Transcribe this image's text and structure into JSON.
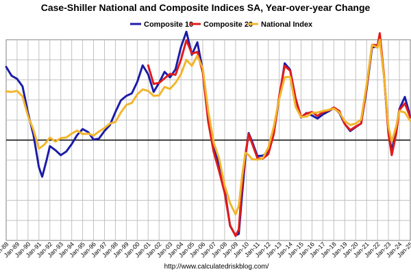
{
  "chart_data": {
    "type": "line",
    "title": "Case-Shiller National and Composite Indices SA, Year-over-year Change",
    "source": "http://www.calculatedriskblog.com/",
    "xlabel": "",
    "ylabel": "",
    "grid": true,
    "legend_position": "top-center",
    "xlim": [
      1988,
      2025
    ],
    "ylim": [
      -20,
      20
    ],
    "x_ticks": [
      "Jan-88",
      "Jan-89",
      "Jan-90",
      "Jan-91",
      "Jan-92",
      "Jan-93",
      "Jan-94",
      "Jan-95",
      "Jan-96",
      "Jan-97",
      "Jan-98",
      "Jan-99",
      "Jan-00",
      "Jan-01",
      "Jan-02",
      "Jan-03",
      "Jan-04",
      "Jan-05",
      "Jan-06",
      "Jan-07",
      "Jan-08",
      "Jan-09",
      "Jan-10",
      "Jan-11",
      "Jan-12",
      "Jan-13",
      "Jan-14",
      "Jan-15",
      "Jan-16",
      "Jan-17",
      "Jan-18",
      "Jan-19",
      "Jan-20",
      "Jan-21",
      "Jan-22",
      "Jan-23",
      "Jan-24",
      "Jan-25"
    ],
    "series": [
      {
        "name": "Composite 10",
        "color": "#1c1ca6",
        "points": [
          [
            1988.0,
            14.6
          ],
          [
            1988.5,
            12.8
          ],
          [
            1989.0,
            12.2
          ],
          [
            1989.5,
            10.7
          ],
          [
            1990.0,
            5.4
          ],
          [
            1990.5,
            1.0
          ],
          [
            1991.0,
            -5.4
          ],
          [
            1991.3,
            -7.3
          ],
          [
            1991.7,
            -4.0
          ],
          [
            1992.0,
            -1.2
          ],
          [
            1992.5,
            -2.0
          ],
          [
            1993.0,
            -3.0
          ],
          [
            1993.5,
            -2.3
          ],
          [
            1994.0,
            -0.8
          ],
          [
            1994.5,
            1.0
          ],
          [
            1995.0,
            2.2
          ],
          [
            1995.5,
            1.6
          ],
          [
            1996.0,
            0.1
          ],
          [
            1996.5,
            0.3
          ],
          [
            1997.0,
            1.8
          ],
          [
            1997.5,
            3.0
          ],
          [
            1998.0,
            5.6
          ],
          [
            1998.5,
            7.9
          ],
          [
            1999.0,
            8.8
          ],
          [
            1999.5,
            9.3
          ],
          [
            2000.0,
            11.6
          ],
          [
            2000.5,
            14.9
          ],
          [
            2001.0,
            13.1
          ],
          [
            2001.5,
            9.6
          ],
          [
            2002.0,
            11.4
          ],
          [
            2002.5,
            13.6
          ],
          [
            2003.0,
            12.5
          ],
          [
            2003.5,
            14.1
          ],
          [
            2004.0,
            18.5
          ],
          [
            2004.5,
            21.6
          ],
          [
            2004.8,
            18.9
          ],
          [
            2005.0,
            17.0
          ],
          [
            2005.5,
            19.5
          ],
          [
            2006.0,
            13.9
          ],
          [
            2006.5,
            3.9
          ],
          [
            2007.0,
            -1.4
          ],
          [
            2007.5,
            -5.0
          ],
          [
            2008.0,
            -9.8
          ],
          [
            2008.5,
            -17.1
          ],
          [
            2009.0,
            -19.0
          ],
          [
            2009.3,
            -18.7
          ],
          [
            2009.6,
            -10.9
          ],
          [
            2009.9,
            -3.4
          ],
          [
            2010.2,
            1.4
          ],
          [
            2010.5,
            -0.2
          ],
          [
            2011.0,
            -3.2
          ],
          [
            2011.5,
            -3.1
          ],
          [
            2012.0,
            -2.4
          ],
          [
            2012.5,
            1.4
          ],
          [
            2013.0,
            8.3
          ],
          [
            2013.5,
            15.3
          ],
          [
            2014.0,
            14.0
          ],
          [
            2014.5,
            8.2
          ],
          [
            2015.0,
            4.5
          ],
          [
            2015.5,
            5.4
          ],
          [
            2016.0,
            4.9
          ],
          [
            2016.5,
            4.3
          ],
          [
            2017.0,
            5.1
          ],
          [
            2017.5,
            5.7
          ],
          [
            2018.0,
            6.4
          ],
          [
            2018.5,
            5.4
          ],
          [
            2019.0,
            3.2
          ],
          [
            2019.5,
            1.8
          ],
          [
            2020.0,
            2.6
          ],
          [
            2020.5,
            3.3
          ],
          [
            2021.0,
            10.1
          ],
          [
            2021.5,
            18.5
          ],
          [
            2022.0,
            18.6
          ],
          [
            2022.2,
            20.0
          ],
          [
            2022.6,
            12.6
          ],
          [
            2023.0,
            1.6
          ],
          [
            2023.3,
            -2.2
          ],
          [
            2023.7,
            2.2
          ],
          [
            2024.0,
            6.2
          ],
          [
            2024.5,
            8.6
          ],
          [
            2025.0,
            4.7
          ]
        ]
      },
      {
        "name": "Composite 20",
        "color": "#e01b1b",
        "points": [
          [
            2001.0,
            14.9
          ],
          [
            2001.5,
            11.2
          ],
          [
            2002.0,
            11.4
          ],
          [
            2002.5,
            12.3
          ],
          [
            2003.0,
            13.2
          ],
          [
            2003.5,
            13.0
          ],
          [
            2004.0,
            16.0
          ],
          [
            2004.5,
            19.9
          ],
          [
            2005.0,
            17.2
          ],
          [
            2005.5,
            17.6
          ],
          [
            2006.0,
            13.5
          ],
          [
            2006.5,
            3.6
          ],
          [
            2007.0,
            -2.4
          ],
          [
            2007.5,
            -6.2
          ],
          [
            2008.0,
            -10.5
          ],
          [
            2008.5,
            -17.0
          ],
          [
            2009.0,
            -19.1
          ],
          [
            2009.3,
            -17.8
          ],
          [
            2009.6,
            -8.8
          ],
          [
            2009.9,
            -2.8
          ],
          [
            2010.2,
            1.2
          ],
          [
            2010.5,
            -0.6
          ],
          [
            2011.0,
            -3.6
          ],
          [
            2011.5,
            -3.7
          ],
          [
            2012.0,
            -2.8
          ],
          [
            2012.5,
            1.2
          ],
          [
            2013.0,
            8.8
          ],
          [
            2013.5,
            14.8
          ],
          [
            2014.0,
            13.8
          ],
          [
            2014.5,
            8.3
          ],
          [
            2015.0,
            4.6
          ],
          [
            2015.5,
            5.3
          ],
          [
            2016.0,
            5.6
          ],
          [
            2016.5,
            4.8
          ],
          [
            2017.0,
            5.6
          ],
          [
            2017.5,
            5.9
          ],
          [
            2018.0,
            6.5
          ],
          [
            2018.5,
            5.8
          ],
          [
            2019.0,
            3.2
          ],
          [
            2019.5,
            2.0
          ],
          [
            2020.0,
            2.7
          ],
          [
            2020.5,
            3.3
          ],
          [
            2021.0,
            10.5
          ],
          [
            2021.5,
            19.0
          ],
          [
            2022.0,
            18.9
          ],
          [
            2022.2,
            21.3
          ],
          [
            2022.6,
            12.9
          ],
          [
            2023.0,
            1.2
          ],
          [
            2023.3,
            -3.0
          ],
          [
            2023.7,
            1.2
          ],
          [
            2024.0,
            6.0
          ],
          [
            2024.5,
            7.3
          ],
          [
            2025.0,
            4.5
          ]
        ]
      },
      {
        "name": "National Index",
        "color": "#f2b52c",
        "points": [
          [
            1988.0,
            9.7
          ],
          [
            1988.5,
            9.6
          ],
          [
            1989.0,
            9.8
          ],
          [
            1989.5,
            8.7
          ],
          [
            1990.0,
            4.8
          ],
          [
            1990.5,
            2.0
          ],
          [
            1991.0,
            -1.7
          ],
          [
            1991.5,
            -0.9
          ],
          [
            1992.0,
            0.5
          ],
          [
            1992.5,
            -0.3
          ],
          [
            1993.0,
            0.4
          ],
          [
            1993.5,
            0.5
          ],
          [
            1994.0,
            1.3
          ],
          [
            1994.5,
            1.9
          ],
          [
            1995.0,
            1.2
          ],
          [
            1995.5,
            1.3
          ],
          [
            1996.0,
            0.9
          ],
          [
            1996.5,
            1.7
          ],
          [
            1997.0,
            2.4
          ],
          [
            1997.5,
            3.3
          ],
          [
            1998.0,
            3.6
          ],
          [
            1998.5,
            5.5
          ],
          [
            1999.0,
            7.0
          ],
          [
            1999.5,
            7.4
          ],
          [
            2000.0,
            9.1
          ],
          [
            2000.5,
            10.1
          ],
          [
            2001.0,
            9.8
          ],
          [
            2001.5,
            8.8
          ],
          [
            2002.0,
            8.9
          ],
          [
            2002.5,
            10.6
          ],
          [
            2003.0,
            10.2
          ],
          [
            2003.5,
            11.4
          ],
          [
            2004.0,
            13.1
          ],
          [
            2004.5,
            16.0
          ],
          [
            2005.0,
            14.8
          ],
          [
            2005.5,
            16.8
          ],
          [
            2006.0,
            14.3
          ],
          [
            2006.5,
            5.8
          ],
          [
            2007.0,
            -0.5
          ],
          [
            2007.5,
            -3.7
          ],
          [
            2008.0,
            -9.0
          ],
          [
            2008.5,
            -12.6
          ],
          [
            2009.0,
            -14.8
          ],
          [
            2009.3,
            -13.1
          ],
          [
            2009.6,
            -7.2
          ],
          [
            2009.9,
            -2.5
          ],
          [
            2010.2,
            -3.0
          ],
          [
            2010.5,
            -3.8
          ],
          [
            2011.0,
            -3.9
          ],
          [
            2011.5,
            -3.6
          ],
          [
            2012.0,
            -1.5
          ],
          [
            2012.5,
            2.7
          ],
          [
            2013.0,
            8.2
          ],
          [
            2013.5,
            12.5
          ],
          [
            2014.0,
            12.6
          ],
          [
            2014.5,
            6.6
          ],
          [
            2015.0,
            4.6
          ],
          [
            2015.5,
            4.7
          ],
          [
            2016.0,
            5.4
          ],
          [
            2016.5,
            5.5
          ],
          [
            2017.0,
            5.8
          ],
          [
            2017.5,
            6.0
          ],
          [
            2018.0,
            6.3
          ],
          [
            2018.5,
            5.5
          ],
          [
            2019.0,
            3.8
          ],
          [
            2019.5,
            3.0
          ],
          [
            2020.0,
            3.3
          ],
          [
            2020.5,
            4.1
          ],
          [
            2021.0,
            11.0
          ],
          [
            2021.5,
            19.0
          ],
          [
            2022.0,
            18.4
          ],
          [
            2022.2,
            20.0
          ],
          [
            2022.6,
            12.5
          ],
          [
            2023.0,
            2.6
          ],
          [
            2023.3,
            -0.3
          ],
          [
            2023.7,
            2.7
          ],
          [
            2024.0,
            5.8
          ],
          [
            2024.5,
            5.5
          ],
          [
            2025.0,
            3.8
          ]
        ]
      }
    ]
  }
}
